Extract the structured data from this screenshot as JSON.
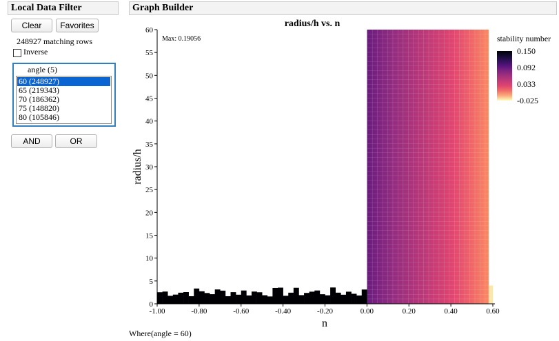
{
  "left_panel": {
    "title": "Local Data Filter",
    "clear_label": "Clear",
    "favorites_label": "Favorites",
    "matching_rows": "248927 matching rows",
    "inverse_label": "Inverse",
    "inverse_checked": false,
    "filter": {
      "header": "angle (5)",
      "items": [
        {
          "label": "60 (248927)",
          "selected": true
        },
        {
          "label": "65 (219343)",
          "selected": false
        },
        {
          "label": "70 (186362)",
          "selected": false
        },
        {
          "label": "75 (148820)",
          "selected": false
        },
        {
          "label": "80 (105846)",
          "selected": false
        }
      ]
    },
    "and_label": "AND",
    "or_label": "OR"
  },
  "graph_builder": {
    "title": "Graph Builder",
    "where_text": "Where(angle = 60)"
  },
  "chart_data": {
    "type": "heatmap",
    "title": "radius/h vs. n",
    "xlabel": "n",
    "ylabel": "radius/h",
    "xlim": [
      -1.0,
      0.6
    ],
    "ylim": [
      0,
      60
    ],
    "x_ticks": [
      "-1.00",
      "-0.80",
      "-0.60",
      "-0.40",
      "-0.20",
      "0.00",
      "0.20",
      "0.40",
      "0.60"
    ],
    "y_ticks": [
      "0",
      "5",
      "10",
      "15",
      "20",
      "25",
      "30",
      "35",
      "40",
      "45",
      "50",
      "55",
      "60"
    ],
    "annotation": "Max: 0.19056",
    "color_scale": {
      "title": "stability number",
      "labels": [
        "0.150",
        "0.092",
        "0.033",
        "-0.025"
      ],
      "min": -0.025,
      "max": 0.15,
      "colors": [
        "#fcfdbf",
        "#fb8861",
        "#e3466f",
        "#b73779",
        "#8c2981",
        "#51127c",
        "#1d1147",
        "#000004"
      ]
    },
    "region_main": {
      "x_range": [
        0.0,
        0.58
      ],
      "y_range": [
        0,
        60
      ],
      "value_at_x0": 0.09,
      "value_at_x058": 0.0
    },
    "region_edge": {
      "x_range": [
        0.58,
        0.6
      ],
      "y_range": [
        0,
        4
      ],
      "value": -0.02
    },
    "region_low": {
      "x_range": [
        -1.0,
        0.0
      ],
      "y_range": [
        0,
        3
      ],
      "value": 0.15
    }
  }
}
